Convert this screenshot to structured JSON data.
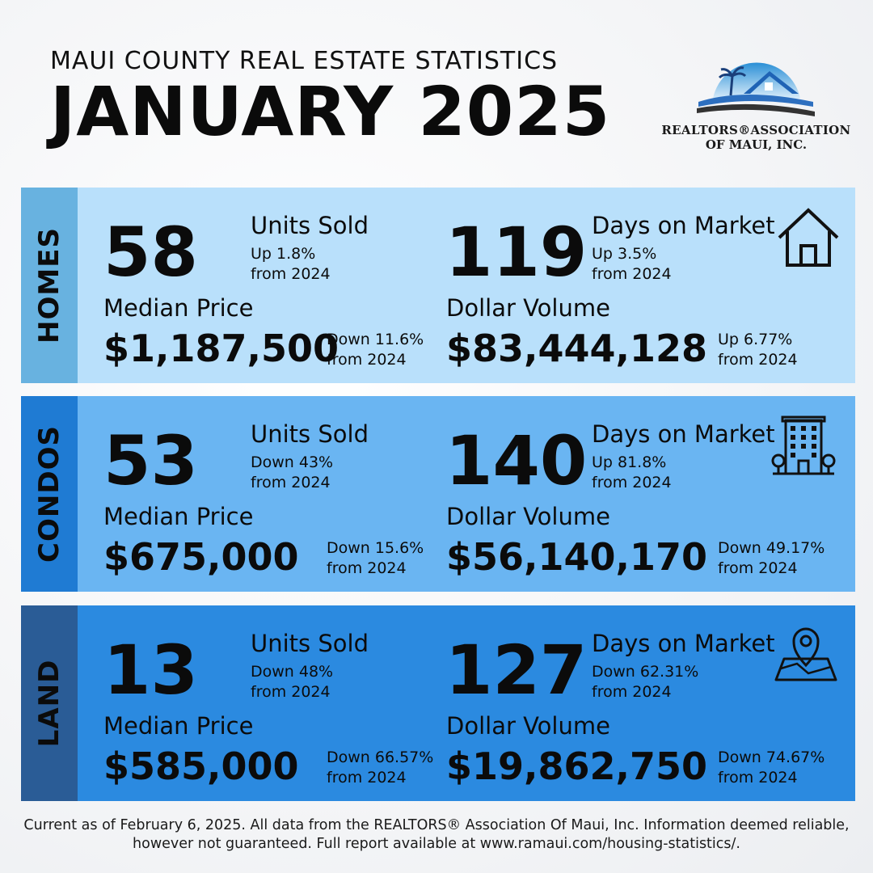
{
  "header": {
    "kicker": "MAUI COUNTY REAL ESTATE STATISTICS",
    "title": "JANUARY 2025"
  },
  "logo": {
    "line1": "REALTORS®ASSOCIATION",
    "line2": "OF MAUI, INC."
  },
  "sections": [
    {
      "name": "HOMES",
      "icon": "house-icon",
      "units": "58",
      "units_label": "Units Sold",
      "units_change": "Up 1.8%",
      "units_ref": "from 2024",
      "dom": "119",
      "dom_label": "Days on Market",
      "dom_change": "Up 3.5%",
      "dom_ref": "from 2024",
      "median_label": "Median Price",
      "median": "$1,187,500",
      "median_change": "Down 11.6%",
      "median_ref": "from 2024",
      "volume_label": "Dollar Volume",
      "volume": "$83,444,128",
      "volume_change": "Up 6.77%",
      "volume_ref": "from 2024"
    },
    {
      "name": "CONDOS",
      "icon": "apartment-building-icon",
      "units": "53",
      "units_label": "Units Sold",
      "units_change": "Down 43%",
      "units_ref": "from 2024",
      "dom": "140",
      "dom_label": "Days on Market",
      "dom_change": "Up 81.8%",
      "dom_ref": "from 2024",
      "median_label": "Median Price",
      "median": "$675,000",
      "median_change": "Down 15.6%",
      "median_ref": "from 2024",
      "volume_label": "Dollar Volume",
      "volume": "$56,140,170",
      "volume_change": "Down 49.17%",
      "volume_ref": "from 2024"
    },
    {
      "name": "LAND",
      "icon": "map-pin-icon",
      "units": "13",
      "units_label": "Units Sold",
      "units_change": "Down 48%",
      "units_ref": "from 2024",
      "dom": "127",
      "dom_label": "Days on Market",
      "dom_change": "Down 62.31%",
      "dom_ref": "from 2024",
      "median_label": "Median Price",
      "median": "$585,000",
      "median_change": "Down 66.57%",
      "median_ref": "from 2024",
      "volume_label": "Dollar Volume",
      "volume": "$19,862,750",
      "volume_change": "Down 74.67%",
      "volume_ref": "from 2024"
    }
  ],
  "footer": {
    "line1": "Current as of February 6, 2025. All data from the REALTORS® Association Of Maui, Inc. Information deemed reliable,",
    "line2": "however not guaranteed. Full report available at www.ramaui.com/housing-statistics/."
  },
  "colors": {
    "homes_side": "#68b2e0",
    "homes_body": "#b9e0fb",
    "condos_side": "#1f7bd3",
    "condos_body": "#6ab5f2",
    "land_side": "#2a5c96",
    "land_body": "#2b8ae0"
  }
}
